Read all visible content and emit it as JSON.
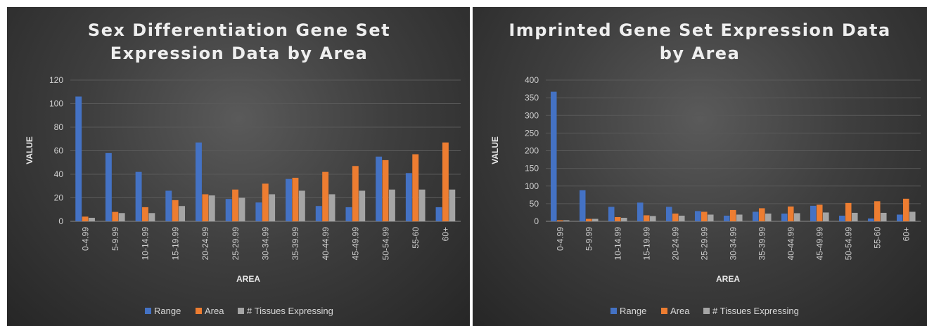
{
  "series_colors": [
    "#4472c4",
    "#ed7d31",
    "#a5a5a5"
  ],
  "chart_data": [
    {
      "type": "bar",
      "title_lines": [
        "Sex Differentiation Gene Set",
        "Expression Data by Area"
      ],
      "xlabel": "AREA",
      "ylabel": "VALUE",
      "ylim": [
        0,
        120
      ],
      "yticks": [
        0,
        20,
        40,
        60,
        80,
        100,
        120
      ],
      "grid": true,
      "legend_position": "bottom",
      "categories": [
        "0-4.99",
        "5-9.99",
        "10-14.99",
        "15-19.99",
        "20-24.99",
        "25-29.99",
        "30-34.99",
        "35-39.99",
        "40-44.99",
        "45-49.99",
        "50-54.99",
        "55-60",
        "60+"
      ],
      "series": [
        {
          "name": "Range",
          "values": [
            106,
            58,
            42,
            26,
            67,
            19,
            16,
            36,
            13,
            12,
            55,
            41,
            12
          ]
        },
        {
          "name": "Area",
          "values": [
            4,
            8,
            12,
            18,
            23,
            27,
            32,
            37,
            42,
            47,
            52,
            57,
            67
          ]
        },
        {
          "name": "# Tissues Expressing",
          "values": [
            3,
            7,
            7,
            13,
            22,
            20,
            23,
            26,
            23,
            26,
            27,
            27,
            27
          ]
        }
      ]
    },
    {
      "type": "bar",
      "title_lines": [
        "Imprinted Gene Set Expression Data",
        "by Area"
      ],
      "xlabel": "AREA",
      "ylabel": "VALUE",
      "ylim": [
        0,
        400
      ],
      "yticks": [
        0,
        50,
        100,
        150,
        200,
        250,
        300,
        350,
        400
      ],
      "grid": true,
      "legend_position": "bottom",
      "categories": [
        "0-4.99",
        "5-9.99",
        "10-14.99",
        "15-19.99",
        "20-24.99",
        "25-29.99",
        "30-34.99",
        "35-39.99",
        "40-44.99",
        "45-49.99",
        "50-54.99",
        "55-60",
        "60+"
      ],
      "series": [
        {
          "name": "Range",
          "values": [
            367,
            88,
            41,
            53,
            41,
            29,
            16,
            27,
            22,
            44,
            16,
            8,
            19
          ]
        },
        {
          "name": "Area",
          "values": [
            3,
            7,
            12,
            17,
            22,
            27,
            32,
            37,
            42,
            47,
            52,
            57,
            64
          ]
        },
        {
          "name": "# Tissues Expressing",
          "values": [
            3,
            7,
            10,
            15,
            16,
            19,
            19,
            22,
            23,
            25,
            24,
            24,
            27
          ]
        }
      ]
    }
  ]
}
